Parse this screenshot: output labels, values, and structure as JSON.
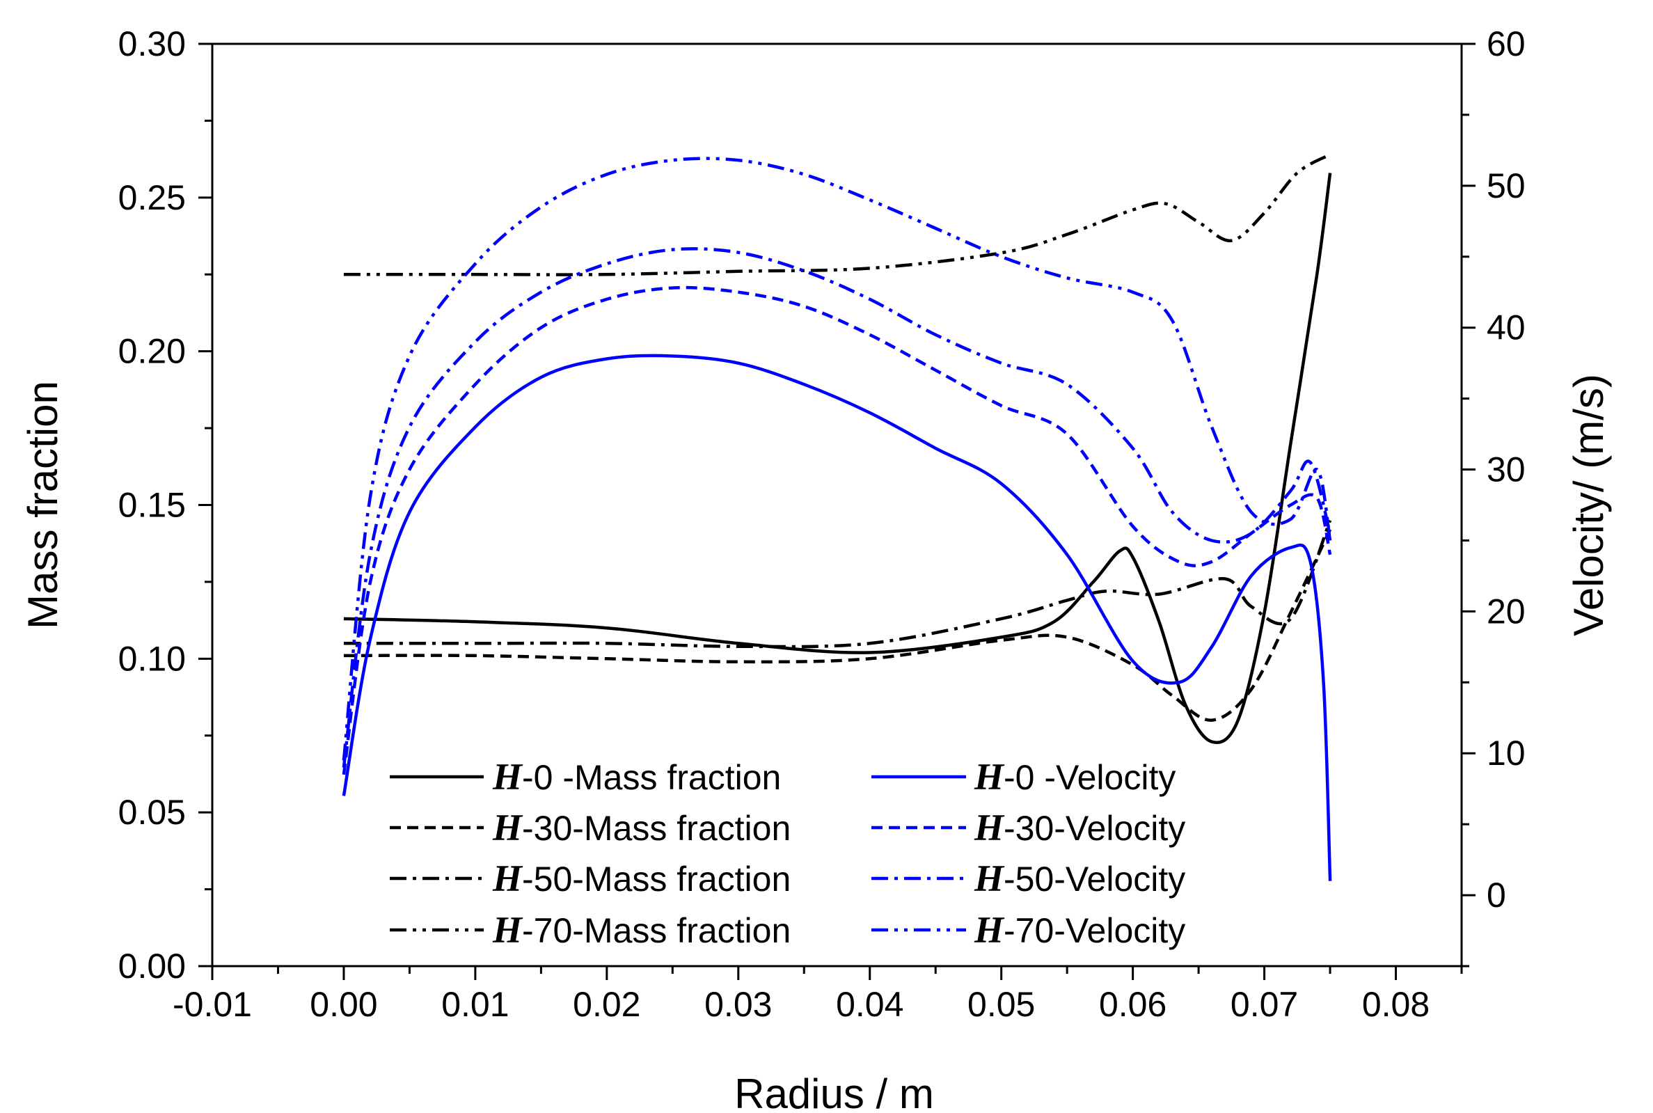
{
  "chart_data": {
    "type": "line",
    "xlabel": "Radius / m",
    "ylabel_left": "Mass fraction",
    "ylabel_right": "Velocity/ (m/s)",
    "xlim": [
      -0.01,
      0.085
    ],
    "ylim_left": [
      0.0,
      0.3
    ],
    "ylim_right": [
      -5,
      60
    ],
    "x_ticks": [
      -0.01,
      0.0,
      0.01,
      0.02,
      0.03,
      0.04,
      0.05,
      0.06,
      0.07,
      0.08
    ],
    "x_tick_labels": [
      "-0.01",
      "0.00",
      "0.01",
      "0.02",
      "0.03",
      "0.04",
      "0.05",
      "0.06",
      "0.07",
      "0.08"
    ],
    "y_left_ticks": [
      0.0,
      0.05,
      0.1,
      0.15,
      0.2,
      0.25,
      0.3
    ],
    "y_left_tick_labels": [
      "0.00",
      "0.05",
      "0.10",
      "0.15",
      "0.20",
      "0.25",
      "0.30"
    ],
    "y_right_ticks": [
      0,
      10,
      20,
      30,
      40,
      50,
      60
    ],
    "y_right_tick_labels": [
      "0",
      "10",
      "20",
      "30",
      "40",
      "50",
      "60"
    ],
    "grid": false,
    "legend_position": "bottom-center",
    "series": [
      {
        "name": "H-0  -Mass fraction",
        "legend_prefix": "H",
        "legend_suffix": "-0  -Mass fraction",
        "axis": "left",
        "color": "#000000",
        "dash": "solid",
        "x": [
          0.0,
          0.01,
          0.02,
          0.03,
          0.04,
          0.05,
          0.054,
          0.057,
          0.059,
          0.06,
          0.062,
          0.064,
          0.066,
          0.068,
          0.07,
          0.072,
          0.074,
          0.075
        ],
        "y": [
          0.113,
          0.112,
          0.11,
          0.105,
          0.102,
          0.107,
          0.112,
          0.125,
          0.135,
          0.133,
          0.112,
          0.085,
          0.073,
          0.08,
          0.115,
          0.17,
          0.225,
          0.258
        ]
      },
      {
        "name": "H-30-Mass fraction",
        "legend_prefix": "H",
        "legend_suffix": "-30-Mass fraction",
        "axis": "left",
        "color": "#000000",
        "dash": "dash",
        "x": [
          0.0,
          0.01,
          0.02,
          0.03,
          0.04,
          0.05,
          0.055,
          0.06,
          0.063,
          0.066,
          0.069,
          0.072,
          0.075
        ],
        "y": [
          0.101,
          0.101,
          0.1,
          0.099,
          0.1,
          0.106,
          0.107,
          0.098,
          0.088,
          0.08,
          0.09,
          0.115,
          0.142
        ]
      },
      {
        "name": "H-50-Mass fraction",
        "legend_prefix": "H",
        "legend_suffix": "-50-Mass fraction",
        "axis": "left",
        "color": "#000000",
        "dash": "dashdot",
        "x": [
          0.0,
          0.01,
          0.02,
          0.03,
          0.04,
          0.05,
          0.055,
          0.058,
          0.062,
          0.067,
          0.069,
          0.072,
          0.075
        ],
        "y": [
          0.105,
          0.105,
          0.105,
          0.104,
          0.105,
          0.113,
          0.119,
          0.122,
          0.121,
          0.126,
          0.117,
          0.113,
          0.145
        ]
      },
      {
        "name": "H-70-Mass fraction",
        "legend_prefix": "H",
        "legend_suffix": "-70-Mass fraction",
        "axis": "left",
        "color": "#000000",
        "dash": "dashdotdot",
        "x": [
          0.0,
          0.01,
          0.02,
          0.03,
          0.04,
          0.05,
          0.055,
          0.06,
          0.0625,
          0.065,
          0.0675,
          0.07,
          0.0725,
          0.075
        ],
        "y": [
          0.225,
          0.225,
          0.225,
          0.226,
          0.227,
          0.232,
          0.238,
          0.246,
          0.248,
          0.242,
          0.236,
          0.245,
          0.258,
          0.264
        ]
      },
      {
        "name": "H-0  -Velocity",
        "legend_prefix": "H",
        "legend_suffix": "-0  -Velocity",
        "axis": "right",
        "color": "#0000ff",
        "dash": "solid",
        "x": [
          0.0,
          0.002,
          0.005,
          0.01,
          0.015,
          0.02,
          0.025,
          0.03,
          0.035,
          0.04,
          0.045,
          0.05,
          0.055,
          0.06,
          0.0635,
          0.066,
          0.069,
          0.072,
          0.0735,
          0.0745,
          0.075
        ],
        "y": [
          7.0,
          18.0,
          27.0,
          33.0,
          36.5,
          37.8,
          38.0,
          37.5,
          36.0,
          34.0,
          31.5,
          29.0,
          24.0,
          16.5,
          15.0,
          17.5,
          22.5,
          24.5,
          23.5,
          15.0,
          1.0
        ]
      },
      {
        "name": "H-30-Velocity",
        "legend_prefix": "H",
        "legend_suffix": "-30-Velocity",
        "axis": "right",
        "color": "#0000ff",
        "dash": "dash",
        "x": [
          0.0,
          0.002,
          0.005,
          0.01,
          0.015,
          0.02,
          0.025,
          0.03,
          0.035,
          0.04,
          0.045,
          0.05,
          0.055,
          0.06,
          0.0635,
          0.066,
          0.069,
          0.072,
          0.074,
          0.075
        ],
        "y": [
          8.5,
          22.0,
          30.0,
          36.0,
          40.0,
          42.0,
          42.8,
          42.5,
          41.5,
          39.5,
          37.0,
          34.5,
          32.5,
          26.0,
          23.5,
          23.5,
          25.5,
          27.5,
          28.0,
          24.0
        ]
      },
      {
        "name": "H-50-Velocity",
        "legend_prefix": "H",
        "legend_suffix": "-50-Velocity",
        "axis": "right",
        "color": "#0000ff",
        "dash": "dashdot",
        "x": [
          0.0,
          0.002,
          0.005,
          0.01,
          0.015,
          0.02,
          0.025,
          0.03,
          0.035,
          0.04,
          0.045,
          0.05,
          0.055,
          0.06,
          0.063,
          0.066,
          0.069,
          0.072,
          0.0735,
          0.075
        ],
        "y": [
          9.0,
          24.0,
          33.0,
          39.0,
          42.5,
          44.5,
          45.5,
          45.3,
          44.0,
          42.0,
          39.5,
          37.5,
          36.0,
          31.5,
          27.0,
          25.0,
          25.5,
          28.5,
          30.5,
          25.5
        ]
      },
      {
        "name": "H-70-Velocity",
        "legend_prefix": "H",
        "legend_suffix": "-70-Velocity",
        "axis": "right",
        "color": "#0000ff",
        "dash": "dashdotdot",
        "x": [
          0.0,
          0.002,
          0.005,
          0.01,
          0.015,
          0.02,
          0.025,
          0.03,
          0.035,
          0.04,
          0.045,
          0.05,
          0.055,
          0.06,
          0.063,
          0.066,
          0.069,
          0.072,
          0.074,
          0.075
        ],
        "y": [
          9.5,
          28.0,
          38.0,
          44.5,
          48.5,
          50.8,
          51.8,
          51.8,
          50.8,
          49.0,
          47.0,
          45.0,
          43.5,
          42.5,
          40.5,
          33.0,
          27.0,
          26.5,
          30.0,
          25.0
        ]
      }
    ]
  }
}
